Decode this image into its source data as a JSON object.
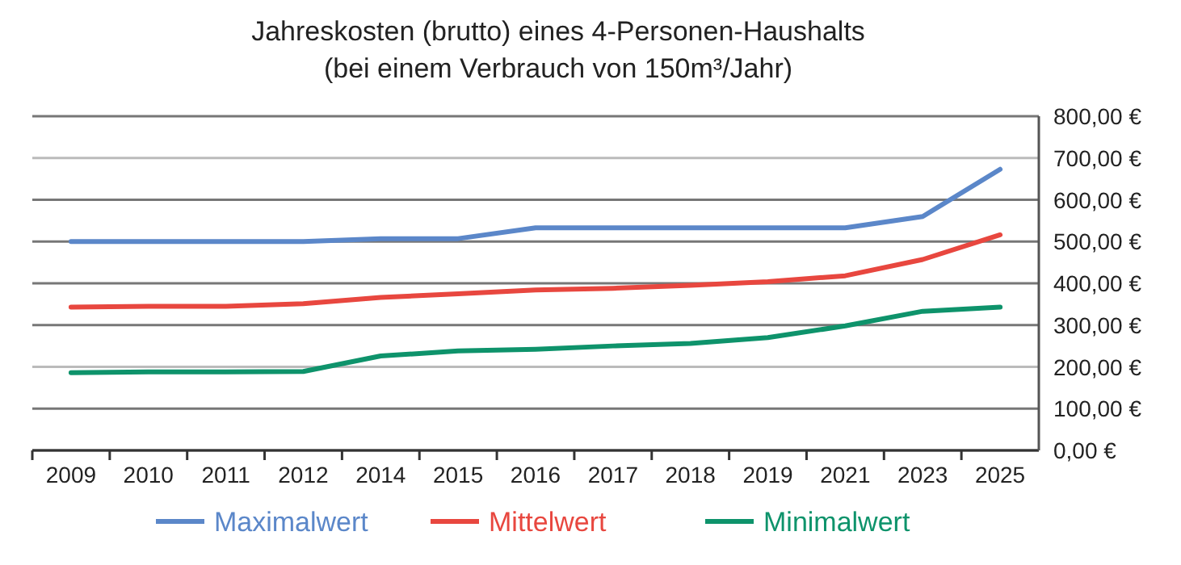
{
  "chart_data": {
    "type": "line",
    "title": "Jahreskosten (brutto) eines 4-Personen-Haushalts\n(bei einem Verbrauch von 150m³/Jahr)",
    "categories": [
      "2009",
      "2010",
      "2011",
      "2012",
      "2014",
      "2015",
      "2016",
      "2017",
      "2018",
      "2019",
      "2021",
      "2023",
      "2025"
    ],
    "series": [
      {
        "name": "Maximalwert",
        "color": "#5b87c9",
        "values": [
          500,
          500,
          500,
          500,
          507,
          507,
          533,
          533,
          533,
          533,
          533,
          560,
          673
        ]
      },
      {
        "name": "Mittelwert",
        "color": "#e8473f",
        "values": [
          343,
          345,
          345,
          351,
          366,
          375,
          384,
          388,
          395,
          404,
          418,
          457,
          516
        ]
      },
      {
        "name": "Minimalwert",
        "color": "#0e936b",
        "values": [
          186,
          188,
          188,
          189,
          226,
          238,
          242,
          250,
          256,
          270,
          298,
          333,
          343
        ]
      }
    ],
    "ylim": [
      0,
      800
    ],
    "yticks": [
      {
        "value": 0,
        "label": "0,00 €"
      },
      {
        "value": 100,
        "label": "100,00 €"
      },
      {
        "value": 200,
        "label": "200,00 €"
      },
      {
        "value": 300,
        "label": "300,00 €"
      },
      {
        "value": 400,
        "label": "400,00 €"
      },
      {
        "value": 500,
        "label": "500,00 €"
      },
      {
        "value": 600,
        "label": "600,00 €"
      },
      {
        "value": 700,
        "label": "700,00 €"
      },
      {
        "value": 800,
        "label": "800,00 €"
      }
    ],
    "grid": "y",
    "legend": "bottom",
    "marker": "none",
    "line_style": "solid"
  }
}
